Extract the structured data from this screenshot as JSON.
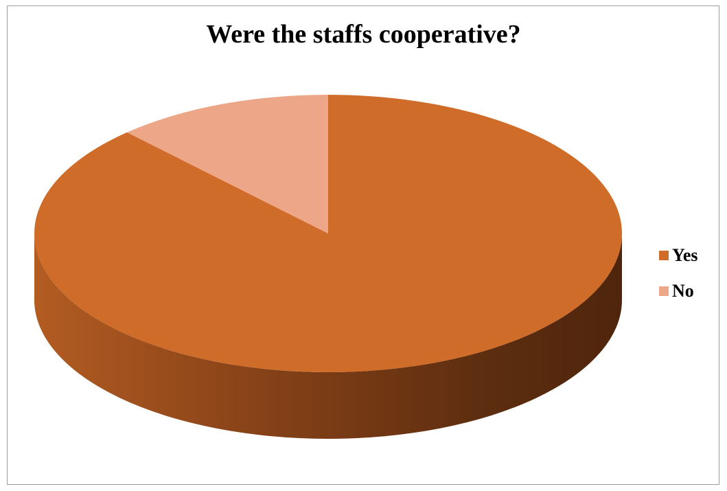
{
  "chart_data": {
    "type": "pie",
    "title": "Were the staffs cooperative?",
    "categories": [
      "Yes",
      "No"
    ],
    "values": [
      88,
      12
    ],
    "colors": [
      "#CF6C29",
      "#EDA687"
    ],
    "side_colors": [
      "#B0581F",
      "#5B2C0E"
    ],
    "style": "3d",
    "legend": {
      "position": "right",
      "entries": [
        "Yes",
        "No"
      ]
    }
  }
}
